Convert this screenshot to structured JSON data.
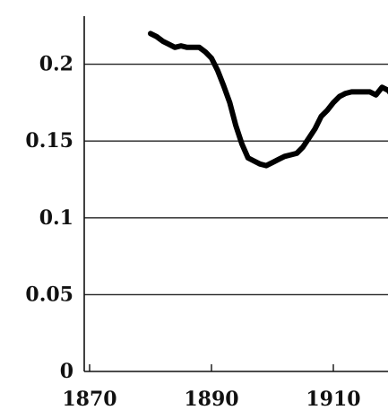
{
  "chart_data": {
    "type": "line",
    "title": "",
    "xlabel": "",
    "ylabel": "",
    "xlim": [
      1870,
      1922
    ],
    "ylim": [
      0,
      0.235
    ],
    "grid": "horizontal",
    "x_ticks": [
      {
        "value": 1870,
        "label": "1870"
      },
      {
        "value": 1890,
        "label": "1890"
      },
      {
        "value": 1910,
        "label": "1910"
      }
    ],
    "y_ticks": [
      {
        "value": 0,
        "label": "0"
      },
      {
        "value": 0.05,
        "label": "0.05"
      },
      {
        "value": 0.1,
        "label": "0.1"
      },
      {
        "value": 0.15,
        "label": "0.15"
      },
      {
        "value": 0.2,
        "label": "0.2"
      }
    ],
    "series": [
      {
        "color": "#000000",
        "x": [
          1880.0,
          1881.0,
          1882.0,
          1883.0,
          1884.0,
          1885.0,
          1886.0,
          1887.0,
          1888.0,
          1889.0,
          1890.0,
          1891.0,
          1892.0,
          1893.0,
          1894.0,
          1895.0,
          1896.0,
          1897.0,
          1898.0,
          1899.0,
          1900.0,
          1901.0,
          1902.0,
          1903.0,
          1904.0,
          1905.0,
          1906.0,
          1907.0,
          1908.0,
          1909.0,
          1910.0,
          1911.0,
          1912.0,
          1913.0,
          1914.0,
          1915.0,
          1916.0,
          1917.0,
          1918.0,
          1919.0,
          1920.0
        ],
        "values": [
          0.22,
          0.218,
          0.215,
          0.213,
          0.211,
          0.212,
          0.211,
          0.211,
          0.211,
          0.208,
          0.204,
          0.196,
          0.186,
          0.175,
          0.16,
          0.148,
          0.139,
          0.137,
          0.135,
          0.134,
          0.136,
          0.138,
          0.14,
          0.141,
          0.142,
          0.146,
          0.152,
          0.158,
          0.166,
          0.17,
          0.175,
          0.179,
          0.181,
          0.182,
          0.182,
          0.182,
          0.182,
          0.18,
          0.185,
          0.183,
          0.178
        ]
      }
    ]
  }
}
